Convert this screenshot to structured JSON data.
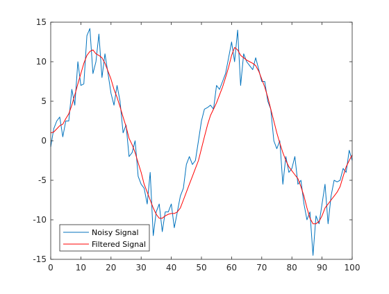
{
  "chart_data": {
    "type": "line",
    "title": "",
    "xlabel": "",
    "ylabel": "",
    "xlim": [
      0,
      100
    ],
    "ylim": [
      -15,
      15
    ],
    "grid": false,
    "legend_location": "bottom-left",
    "xticks": [
      0,
      10,
      20,
      30,
      40,
      50,
      60,
      70,
      80,
      90,
      100
    ],
    "yticks": [
      -15,
      -10,
      -5,
      0,
      5,
      10,
      15
    ],
    "series": [
      {
        "name": "Noisy Signal",
        "color": "#0072BD",
        "points": [
          [
            0,
            -0.8
          ],
          [
            1,
            1.5
          ],
          [
            2,
            2.5
          ],
          [
            3,
            3.0
          ],
          [
            4,
            0.5
          ],
          [
            5,
            2.5
          ],
          [
            6,
            2.5
          ],
          [
            7,
            6.5
          ],
          [
            8,
            4.5
          ],
          [
            9,
            10.0
          ],
          [
            10,
            7.0
          ],
          [
            11,
            7.2
          ],
          [
            12,
            13.3
          ],
          [
            13,
            14.2
          ],
          [
            14,
            8.5
          ],
          [
            15,
            10.0
          ],
          [
            16,
            13.5
          ],
          [
            17,
            8.0
          ],
          [
            18,
            11.0
          ],
          [
            19,
            8.5
          ],
          [
            20,
            6.0
          ],
          [
            21,
            4.5
          ],
          [
            22,
            7.0
          ],
          [
            23,
            5.0
          ],
          [
            24,
            1.0
          ],
          [
            25,
            2.0
          ],
          [
            26,
            -2.0
          ],
          [
            27,
            -1.5
          ],
          [
            28,
            0.0
          ],
          [
            29,
            -4.5
          ],
          [
            30,
            -5.5
          ],
          [
            31,
            -6.0
          ],
          [
            32,
            -8.0
          ],
          [
            33,
            -4.0
          ],
          [
            34,
            -12.0
          ],
          [
            35,
            -9.0
          ],
          [
            36,
            -8.0
          ],
          [
            37,
            -11.5
          ],
          [
            38,
            -9.0
          ],
          [
            39,
            -9.0
          ],
          [
            40,
            -8.0
          ],
          [
            41,
            -11.0
          ],
          [
            42,
            -9.0
          ],
          [
            43,
            -7.0
          ],
          [
            44,
            -6.0
          ],
          [
            45,
            -3.0
          ],
          [
            46,
            -2.0
          ],
          [
            47,
            -3.0
          ],
          [
            48,
            -2.5
          ],
          [
            49,
            0.0
          ],
          [
            50,
            2.5
          ],
          [
            51,
            4.0
          ],
          [
            52,
            4.2
          ],
          [
            53,
            4.5
          ],
          [
            54,
            4.0
          ],
          [
            55,
            7.0
          ],
          [
            56,
            6.5
          ],
          [
            57,
            7.5
          ],
          [
            58,
            8.5
          ],
          [
            59,
            10.5
          ],
          [
            60,
            12.5
          ],
          [
            61,
            10.0
          ],
          [
            62,
            14.0
          ],
          [
            63,
            7.0
          ],
          [
            64,
            11.0
          ],
          [
            65,
            10.0
          ],
          [
            66,
            9.5
          ],
          [
            67,
            9.0
          ],
          [
            68,
            10.5
          ],
          [
            69,
            9.0
          ],
          [
            70,
            7.5
          ],
          [
            71,
            7.5
          ],
          [
            72,
            5.0
          ],
          [
            73,
            4.0
          ],
          [
            74,
            0.0
          ],
          [
            75,
            -1.0
          ],
          [
            76,
            0.0
          ],
          [
            77,
            -5.5
          ],
          [
            78,
            -2.0
          ],
          [
            79,
            -4.0
          ],
          [
            80,
            -3.5
          ],
          [
            81,
            -2.0
          ],
          [
            82,
            -5.5
          ],
          [
            83,
            -5.0
          ],
          [
            84,
            -8.0
          ],
          [
            85,
            -10.0
          ],
          [
            86,
            -9.0
          ],
          [
            87,
            -14.5
          ],
          [
            88,
            -9.5
          ],
          [
            89,
            -10.5
          ],
          [
            90,
            -8.0
          ],
          [
            91,
            -5.5
          ],
          [
            92,
            -10.5
          ],
          [
            93,
            -7.0
          ],
          [
            94,
            -5.0
          ],
          [
            95,
            -5.2
          ],
          [
            96,
            -5.0
          ],
          [
            97,
            -3.5
          ],
          [
            98,
            -4.0
          ],
          [
            99,
            -1.2
          ],
          [
            100,
            -2.5
          ]
        ]
      },
      {
        "name": "Filtered Signal",
        "color": "#FF0000",
        "points": [
          [
            0,
            1.0
          ],
          [
            1,
            1.1
          ],
          [
            2,
            1.5
          ],
          [
            3,
            1.9
          ],
          [
            4,
            2.1
          ],
          [
            5,
            2.8
          ],
          [
            6,
            3.4
          ],
          [
            7,
            4.5
          ],
          [
            8,
            5.8
          ],
          [
            9,
            7.2
          ],
          [
            10,
            8.5
          ],
          [
            11,
            9.8
          ],
          [
            12,
            10.8
          ],
          [
            13,
            11.3
          ],
          [
            14,
            11.5
          ],
          [
            15,
            11.0
          ],
          [
            16,
            10.8
          ],
          [
            17,
            10.5
          ],
          [
            18,
            9.8
          ],
          [
            19,
            8.8
          ],
          [
            20,
            7.8
          ],
          [
            21,
            6.5
          ],
          [
            22,
            5.5
          ],
          [
            23,
            4.3
          ],
          [
            24,
            3.0
          ],
          [
            25,
            1.8
          ],
          [
            26,
            0.3
          ],
          [
            27,
            -0.5
          ],
          [
            28,
            -1.5
          ],
          [
            29,
            -2.8
          ],
          [
            30,
            -4.0
          ],
          [
            31,
            -5.5
          ],
          [
            32,
            -6.5
          ],
          [
            33,
            -7.5
          ],
          [
            34,
            -8.5
          ],
          [
            35,
            -9.3
          ],
          [
            36,
            -9.8
          ],
          [
            37,
            -9.8
          ],
          [
            38,
            -9.5
          ],
          [
            39,
            -9.3
          ],
          [
            40,
            -9.2
          ],
          [
            41,
            -9.2
          ],
          [
            42,
            -9.0
          ],
          [
            43,
            -8.5
          ],
          [
            44,
            -7.5
          ],
          [
            45,
            -6.5
          ],
          [
            46,
            -5.5
          ],
          [
            47,
            -4.5
          ],
          [
            48,
            -3.5
          ],
          [
            49,
            -2.5
          ],
          [
            50,
            -1.0
          ],
          [
            51,
            0.5
          ],
          [
            52,
            2.0
          ],
          [
            53,
            3.2
          ],
          [
            54,
            4.0
          ],
          [
            55,
            4.8
          ],
          [
            56,
            5.8
          ],
          [
            57,
            6.8
          ],
          [
            58,
            8.0
          ],
          [
            59,
            9.3
          ],
          [
            60,
            10.8
          ],
          [
            61,
            11.8
          ],
          [
            62,
            11.5
          ],
          [
            63,
            10.8
          ],
          [
            64,
            10.5
          ],
          [
            65,
            10.2
          ],
          [
            66,
            10.0
          ],
          [
            67,
            9.8
          ],
          [
            68,
            9.5
          ],
          [
            69,
            8.8
          ],
          [
            70,
            7.8
          ],
          [
            71,
            6.8
          ],
          [
            72,
            5.5
          ],
          [
            73,
            4.0
          ],
          [
            74,
            2.5
          ],
          [
            75,
            1.0
          ],
          [
            76,
            -0.3
          ],
          [
            77,
            -1.5
          ],
          [
            78,
            -2.5
          ],
          [
            79,
            -3.3
          ],
          [
            80,
            -3.8
          ],
          [
            81,
            -4.3
          ],
          [
            82,
            -4.8
          ],
          [
            83,
            -5.8
          ],
          [
            84,
            -7.0
          ],
          [
            85,
            -8.5
          ],
          [
            86,
            -9.8
          ],
          [
            87,
            -10.5
          ],
          [
            88,
            -10.5
          ],
          [
            89,
            -10.2
          ],
          [
            90,
            -9.5
          ],
          [
            91,
            -8.5
          ],
          [
            92,
            -8.0
          ],
          [
            93,
            -7.5
          ],
          [
            94,
            -7.0
          ],
          [
            95,
            -6.5
          ],
          [
            96,
            -5.8
          ],
          [
            97,
            -4.5
          ],
          [
            98,
            -3.3
          ],
          [
            99,
            -2.5
          ],
          [
            100,
            -1.8
          ]
        ]
      }
    ]
  }
}
